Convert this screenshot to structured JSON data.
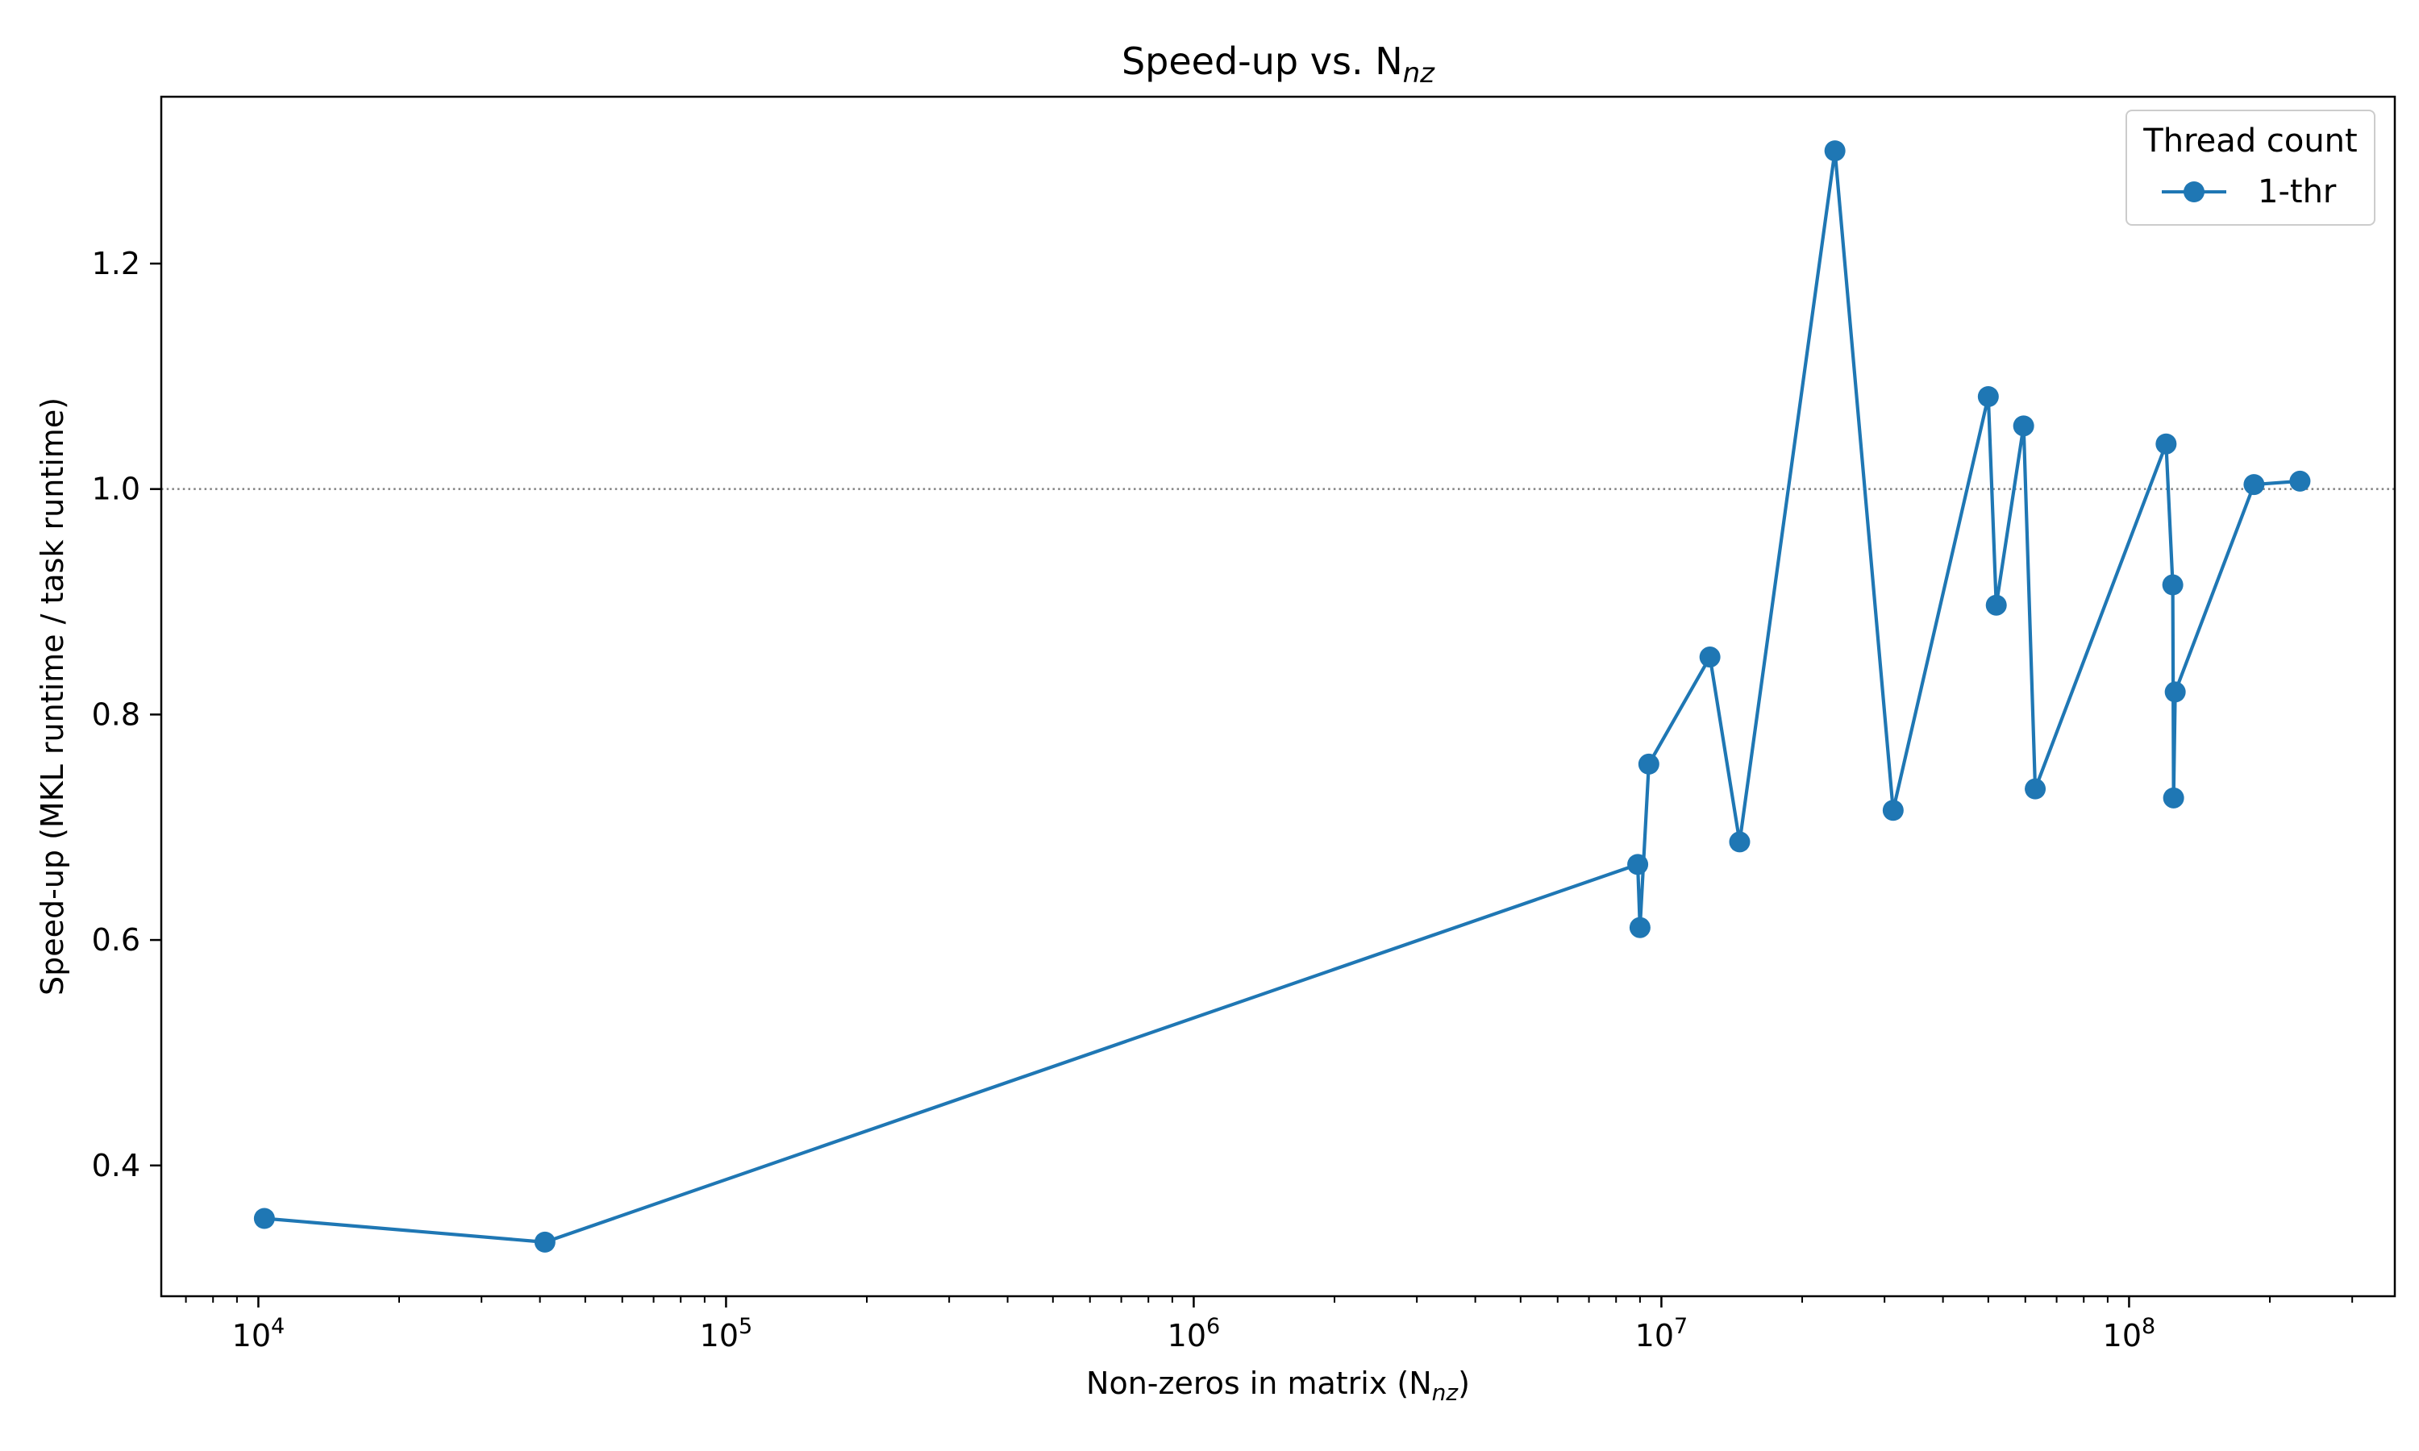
{
  "chart_data": {
    "type": "line",
    "title": "Speed-up vs. N",
    "title_sub": "nz",
    "xlabel": "Non-zeros in matrix (N",
    "xlabel_sub": "nz",
    "xlabel_tail": ")",
    "ylabel": "Speed-up (MKL runtime / task runtime)",
    "xscale": "log",
    "xlim": [
      6200,
      370000000
    ],
    "ylim": [
      0.284,
      1.348
    ],
    "x_ticks": [
      {
        "value": 10000,
        "base": "10",
        "exp": "4"
      },
      {
        "value": 100000,
        "base": "10",
        "exp": "5"
      },
      {
        "value": 1000000,
        "base": "10",
        "exp": "6"
      },
      {
        "value": 10000000,
        "base": "10",
        "exp": "7"
      },
      {
        "value": 100000000,
        "base": "10",
        "exp": "8"
      }
    ],
    "y_ticks": [
      {
        "value": 0.4,
        "label": "0.4"
      },
      {
        "value": 0.6,
        "label": "0.6"
      },
      {
        "value": 0.8,
        "label": "0.8"
      },
      {
        "value": 1.0,
        "label": "1.0"
      },
      {
        "value": 1.2,
        "label": "1.2"
      }
    ],
    "reference_line": {
      "y": 1.0,
      "style": "dotted",
      "color": "#808080"
    },
    "grid": false,
    "legend": {
      "title": "Thread count",
      "position": "top-right"
    },
    "series": [
      {
        "name": "1-thr",
        "color": "#1f77b4",
        "marker": "circle",
        "points": [
          {
            "x": 10300,
            "y": 0.353
          },
          {
            "x": 41000,
            "y": 0.332
          },
          {
            "x": 8900000,
            "y": 0.667
          },
          {
            "x": 9000000,
            "y": 0.611
          },
          {
            "x": 9400000,
            "y": 0.756
          },
          {
            "x": 12700000,
            "y": 0.851
          },
          {
            "x": 14700000,
            "y": 0.687
          },
          {
            "x": 23500000,
            "y": 1.3
          },
          {
            "x": 31300000,
            "y": 0.715
          },
          {
            "x": 50000000,
            "y": 1.082
          },
          {
            "x": 52000000,
            "y": 0.897
          },
          {
            "x": 59500000,
            "y": 1.056
          },
          {
            "x": 63000000,
            "y": 0.734
          },
          {
            "x": 120000000,
            "y": 1.04
          },
          {
            "x": 124000000,
            "y": 0.915
          },
          {
            "x": 124500000,
            "y": 0.726
          },
          {
            "x": 125500000,
            "y": 0.82
          },
          {
            "x": 185000000,
            "y": 1.004
          },
          {
            "x": 232000000,
            "y": 1.007
          }
        ]
      }
    ]
  }
}
